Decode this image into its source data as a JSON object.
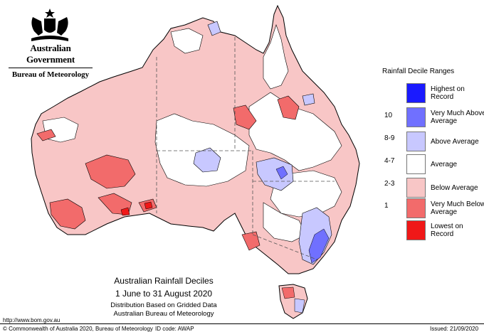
{
  "header": {
    "gov_line": "Australian Government",
    "bureau_line": "Bureau of Meteorology"
  },
  "legend": {
    "title": "Rainfall Decile Ranges",
    "items": [
      {
        "label": "Highest on Record",
        "range": "",
        "color": "#1a1aff"
      },
      {
        "label": "Very Much Above Average",
        "range": "10",
        "color": "#7070ff"
      },
      {
        "label": "Above Average",
        "range": "8-9",
        "color": "#c8c8ff"
      },
      {
        "label": "Average",
        "range": "4-7",
        "color": "#ffffff"
      },
      {
        "label": "Below Average",
        "range": "2-3",
        "color": "#f8c6c6"
      },
      {
        "label": "Very Much Below Average",
        "range": "1",
        "color": "#f26b6b"
      },
      {
        "label": "Lowest on Record",
        "range": "",
        "color": "#f01818"
      }
    ]
  },
  "map": {
    "title": "Australian Rainfall Deciles",
    "period": "1 June to 31 August 2020",
    "note1": "Distribution Based on Gridded Data",
    "note2": "Australian Bureau of Meteorology"
  },
  "footer": {
    "url": "http://www.bom.gov.au",
    "copyright": "© Commonwealth of Australia 2020, Bureau of Meteorology",
    "id_code": "ID code: AWAP",
    "issued": "Issued: 21/09/2020"
  },
  "colors": {
    "state_border": "#555555",
    "outline": "#000000"
  }
}
